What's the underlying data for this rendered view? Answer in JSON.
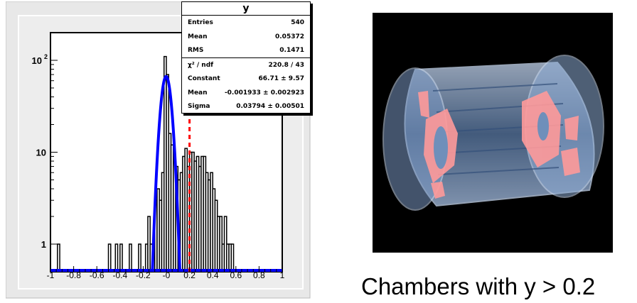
{
  "chart_data": {
    "type": "histogram",
    "title": "",
    "xlabel": "",
    "ylabel": "",
    "xlim": [
      -1,
      1
    ],
    "ylim": [
      0.5,
      200
    ],
    "yscale": "log",
    "x_ticks": [
      "-1",
      "-0.8",
      "-0.6",
      "-0.4",
      "-0.2",
      "-0",
      "0.2",
      "0.4",
      "0.6",
      "0.8",
      "1"
    ],
    "y_ticks": [
      {
        "value": 100,
        "base": "10",
        "exp": "2"
      },
      {
        "value": 10,
        "base": "10",
        "exp": ""
      },
      {
        "value": 1,
        "base": "1",
        "exp": ""
      }
    ],
    "bin_width": 0.02,
    "bins_x": [
      -0.17,
      -0.15,
      -0.13,
      -0.11,
      -0.09,
      -0.07,
      -0.05,
      -0.03,
      -0.01,
      0.01,
      0.03,
      0.05,
      0.07,
      0.09,
      0.11,
      0.13,
      0.15,
      0.17,
      0.19,
      0.21,
      0.23,
      0.25,
      0.27,
      0.29,
      0.31,
      0.33,
      0.35,
      0.37,
      0.39,
      0.41,
      0.43,
      0.45,
      0.47,
      0.49,
      0.51,
      0.53,
      0.55,
      0.57
    ],
    "counts": [
      1,
      2,
      1,
      1,
      3,
      4,
      3,
      6,
      110,
      70,
      16,
      12,
      8,
      7,
      5,
      6,
      9,
      11,
      7,
      10,
      10,
      8,
      9,
      7,
      9,
      9,
      6,
      5,
      6,
      4,
      3,
      2,
      2,
      1,
      2,
      1,
      1,
      1
    ],
    "scattered_bins": [
      {
        "x": -0.93,
        "count": 1
      },
      {
        "x": -0.49,
        "count": 1
      },
      {
        "x": -0.43,
        "count": 1
      },
      {
        "x": -0.39,
        "count": 1
      },
      {
        "x": -0.31,
        "count": 1
      },
      {
        "x": -0.23,
        "count": 1
      }
    ],
    "fit_curve": {
      "type": "gaussian",
      "constant": 66.71,
      "mean": -0.001933,
      "sigma": 0.03794,
      "color": "#0000ff"
    },
    "cut_line": {
      "x": 0.2,
      "color": "#ff0000",
      "style": "dashed"
    },
    "stats": {
      "title": "y",
      "rows": [
        {
          "label": "Entries",
          "value": "540"
        },
        {
          "label": "Mean",
          "value": "0.05372"
        },
        {
          "label": "RMS",
          "value": "0.1471"
        },
        {
          "label": "χ² / ndf",
          "value": "220.8 / 43"
        },
        {
          "label": "Constant",
          "value": "66.71 ± 9.57"
        },
        {
          "label": "Mean",
          "value": "-0.001933 ± 0.002923"
        },
        {
          "label": "Sigma",
          "value": "0.03794 ± 0.00501"
        }
      ]
    }
  },
  "detector": {
    "caption": "Chambers with y > 0.2",
    "background_color": "#000000",
    "barrel_color": "#9ab8e0",
    "highlight_color": "#ff9a9a"
  }
}
